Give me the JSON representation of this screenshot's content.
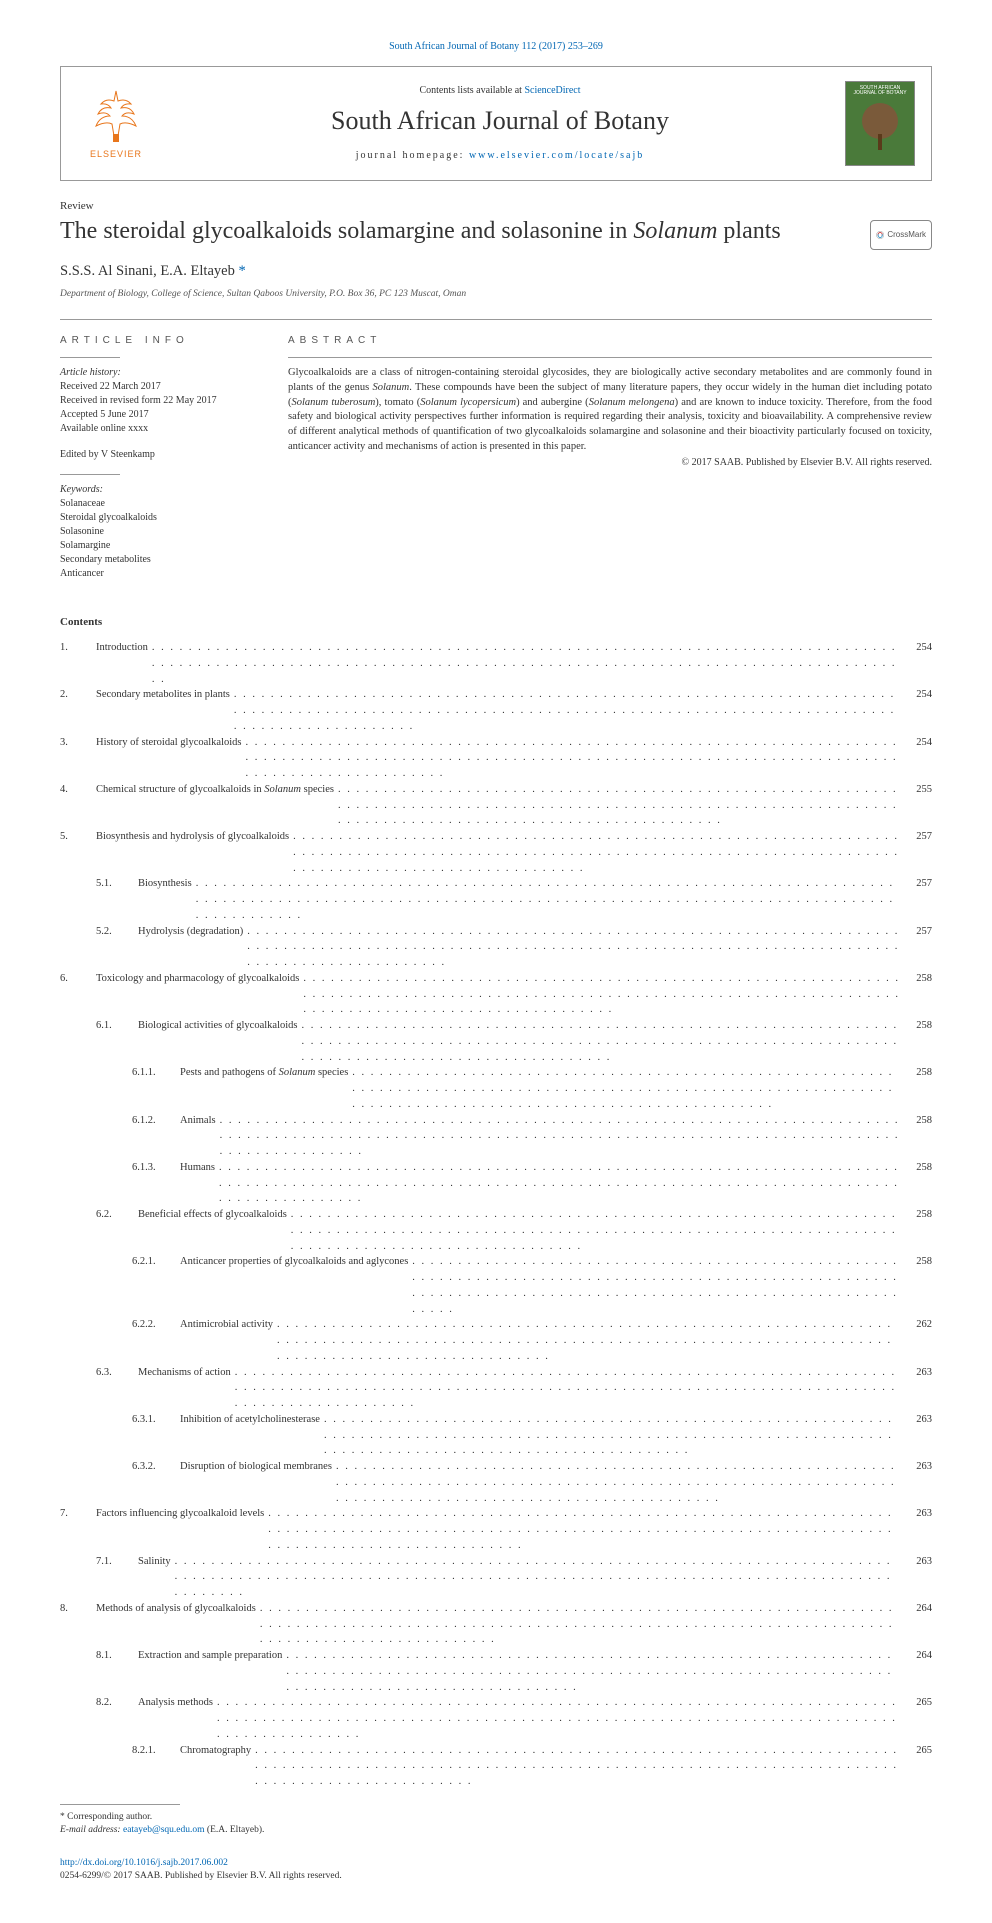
{
  "colors": {
    "link": "#0066b3",
    "elsevier_orange": "#e8761c",
    "cover_green": "#4a7a3a",
    "text": "#333333",
    "muted": "#555555",
    "rule": "#999999"
  },
  "top_ref": {
    "text": "South African Journal of Botany 112 (2017) 253–269"
  },
  "header": {
    "contents_prefix": "Contents lists available at ",
    "contents_link": "ScienceDirect",
    "journal_name": "South African Journal of Botany",
    "homepage_prefix": "journal homepage: ",
    "homepage_link": "www.elsevier.com/locate/sajb",
    "elsevier_label": "ELSEVIER",
    "cover_title": "SOUTH AFRICAN JOURNAL OF BOTANY"
  },
  "article": {
    "type": "Review",
    "title_pre": "The steroidal glycoalkaloids solamargine and solasonine in ",
    "title_italic": "Solanum",
    "title_post": " plants",
    "crossmark": "CrossMark"
  },
  "authors": {
    "line": "S.S.S. Al Sinani, E.A. Eltayeb ",
    "corr_marker": "*"
  },
  "affiliation": "Department of Biology, College of Science, Sultan Qaboos University, P.O. Box 36, PC 123 Muscat, Oman",
  "info": {
    "heading": "article info",
    "history_label": "Article history:",
    "received": "Received 22 March 2017",
    "revised": "Received in revised form 22 May 2017",
    "accepted": "Accepted 5 June 2017",
    "online": "Available online xxxx",
    "editor": "Edited by V Steenkamp",
    "keywords_label": "Keywords:",
    "keywords": [
      "Solanaceae",
      "Steroidal glycoalkaloids",
      "Solasonine",
      "Solamargine",
      "Secondary metabolites",
      "Anticancer"
    ]
  },
  "abstract": {
    "heading": "abstract",
    "text_parts": [
      {
        "t": "Glycoalkaloids are a class of nitrogen-containing steroidal glycosides, they are biologically active secondary metabolites and are commonly found in plants of the genus ",
        "i": false
      },
      {
        "t": "Solanum",
        "i": true
      },
      {
        "t": ". These compounds have been the subject of many literature papers, they occur widely in the human diet including potato (",
        "i": false
      },
      {
        "t": "Solanum tuberosum",
        "i": true
      },
      {
        "t": "), tomato (",
        "i": false
      },
      {
        "t": "Solanum lycopersicum",
        "i": true
      },
      {
        "t": ") and aubergine (",
        "i": false
      },
      {
        "t": "Solanum melongena",
        "i": true
      },
      {
        "t": ") and are known to induce toxicity. Therefore, from the food safety and biological activity perspectives further information is required regarding their analysis, toxicity and bioavailability. A comprehensive review of different analytical methods of quantification of two glycoalkaloids solamargine and solasonine and their bioactivity particularly focused on toxicity, anticancer activity and mechanisms of action is presented in this paper.",
        "i": false
      }
    ],
    "copyright": "© 2017 SAAB. Published by Elsevier B.V. All rights reserved."
  },
  "contents": {
    "heading": "Contents",
    "items": [
      {
        "level": 1,
        "num": "1.",
        "title": "Introduction",
        "page": "254"
      },
      {
        "level": 1,
        "num": "2.",
        "title": "Secondary metabolites in plants",
        "page": "254"
      },
      {
        "level": 1,
        "num": "3.",
        "title": "History of steroidal glycoalkaloids",
        "page": "254"
      },
      {
        "level": 1,
        "num": "4.",
        "title_parts": [
          {
            "t": "Chemical structure of glycoalkaloids in ",
            "i": false
          },
          {
            "t": "Solanum",
            "i": true
          },
          {
            "t": " species",
            "i": false
          }
        ],
        "page": "255"
      },
      {
        "level": 1,
        "num": "5.",
        "title": "Biosynthesis and hydrolysis of glycoalkaloids",
        "page": "257"
      },
      {
        "level": 2,
        "num": "5.1.",
        "title": "Biosynthesis",
        "page": "257"
      },
      {
        "level": 2,
        "num": "5.2.",
        "title": "Hydrolysis (degradation)",
        "page": "257"
      },
      {
        "level": 1,
        "num": "6.",
        "title": "Toxicology and pharmacology of glycoalkaloids",
        "page": "258"
      },
      {
        "level": 2,
        "num": "6.1.",
        "title": "Biological activities of glycoalkaloids",
        "page": "258"
      },
      {
        "level": 3,
        "num": "6.1.1.",
        "title_parts": [
          {
            "t": "Pests and pathogens of ",
            "i": false
          },
          {
            "t": "Solanum",
            "i": true
          },
          {
            "t": " species",
            "i": false
          }
        ],
        "page": "258"
      },
      {
        "level": 3,
        "num": "6.1.2.",
        "title": "Animals",
        "page": "258"
      },
      {
        "level": 3,
        "num": "6.1.3.",
        "title": "Humans",
        "page": "258"
      },
      {
        "level": 2,
        "num": "6.2.",
        "title": "Beneficial effects of glycoalkaloids",
        "page": "258"
      },
      {
        "level": 3,
        "num": "6.2.1.",
        "title": "Anticancer properties of glycoalkaloids and aglycones",
        "page": "258"
      },
      {
        "level": 3,
        "num": "6.2.2.",
        "title": "Antimicrobial activity",
        "page": "262"
      },
      {
        "level": 2,
        "num": "6.3.",
        "title": "Mechanisms of action",
        "page": "263"
      },
      {
        "level": 3,
        "num": "6.3.1.",
        "title": "Inhibition of acetylcholinesterase",
        "page": "263"
      },
      {
        "level": 3,
        "num": "6.3.2.",
        "title": "Disruption of biological membranes",
        "page": "263"
      },
      {
        "level": 1,
        "num": "7.",
        "title": "Factors influencing glycoalkaloid levels",
        "page": "263"
      },
      {
        "level": 2,
        "num": "7.1.",
        "title": "Salinity",
        "page": "263"
      },
      {
        "level": 1,
        "num": "8.",
        "title": "Methods of analysis of glycoalkaloids",
        "page": "264"
      },
      {
        "level": 2,
        "num": "8.1.",
        "title": "Extraction and sample preparation",
        "page": "264"
      },
      {
        "level": 2,
        "num": "8.2.",
        "title": "Analysis methods",
        "page": "265"
      },
      {
        "level": 3,
        "num": "8.2.1.",
        "title": "Chromatography",
        "page": "265"
      }
    ]
  },
  "footer": {
    "corr_label": "* Corresponding author.",
    "email_label": "E-mail address: ",
    "email": "eatayeb@squ.edu.om",
    "email_suffix": " (E.A. Eltayeb).",
    "doi": "http://dx.doi.org/10.1016/j.sajb.2017.06.002",
    "issn_line": "0254-6299/© 2017 SAAB. Published by Elsevier B.V. All rights reserved."
  }
}
